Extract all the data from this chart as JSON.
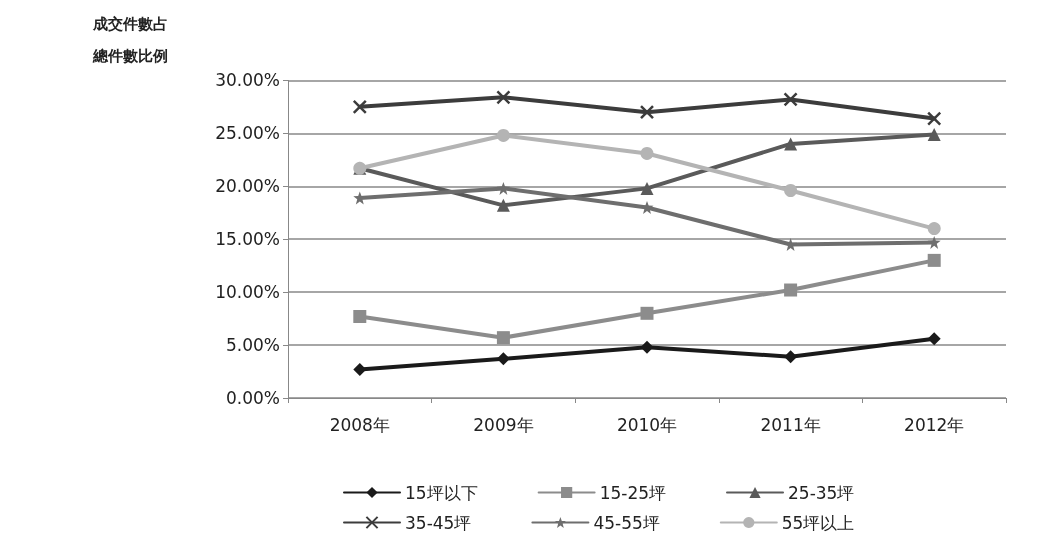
{
  "chart_data": {
    "type": "line",
    "ylabel": "成交件數占總件數比例",
    "categories": [
      "2008年",
      "2009年",
      "2010年",
      "2011年",
      "2012年"
    ],
    "series": [
      {
        "name": "15坪以下",
        "color": "#1a1a1a",
        "marker": "diamond",
        "values": [
          2.7,
          3.7,
          4.8,
          3.9,
          5.6
        ]
      },
      {
        "name": "15-25坪",
        "color": "#8c8c8c",
        "marker": "square",
        "values": [
          7.7,
          5.7,
          8.0,
          10.2,
          13.0
        ]
      },
      {
        "name": "25-35坪",
        "color": "#5a5a5a",
        "marker": "triangle",
        "values": [
          21.7,
          18.2,
          19.8,
          24.0,
          24.9
        ]
      },
      {
        "name": "35-45坪",
        "color": "#3c3c3c",
        "marker": "cross",
        "values": [
          27.5,
          28.4,
          27.0,
          28.2,
          26.4
        ]
      },
      {
        "name": "45-55坪",
        "color": "#6e6e6e",
        "marker": "star",
        "values": [
          18.9,
          19.8,
          18.0,
          14.5,
          14.7
        ]
      },
      {
        "name": "55坪以上",
        "color": "#b4b4b4",
        "marker": "circle",
        "values": [
          21.7,
          24.8,
          23.1,
          19.6,
          16.0
        ]
      }
    ],
    "ylim": [
      0,
      30
    ],
    "yticks": [
      {
        "value": 0,
        "label": "0.00%"
      },
      {
        "value": 5,
        "label": "5.00%"
      },
      {
        "value": 10,
        "label": "10.00%"
      },
      {
        "value": 15,
        "label": "15.00%"
      },
      {
        "value": 20,
        "label": "20.00%"
      },
      {
        "value": 25,
        "label": "25.00%"
      },
      {
        "value": 30,
        "label": "30.00%"
      }
    ],
    "grid": "y",
    "legend": "bottom",
    "line_style": "solid"
  }
}
